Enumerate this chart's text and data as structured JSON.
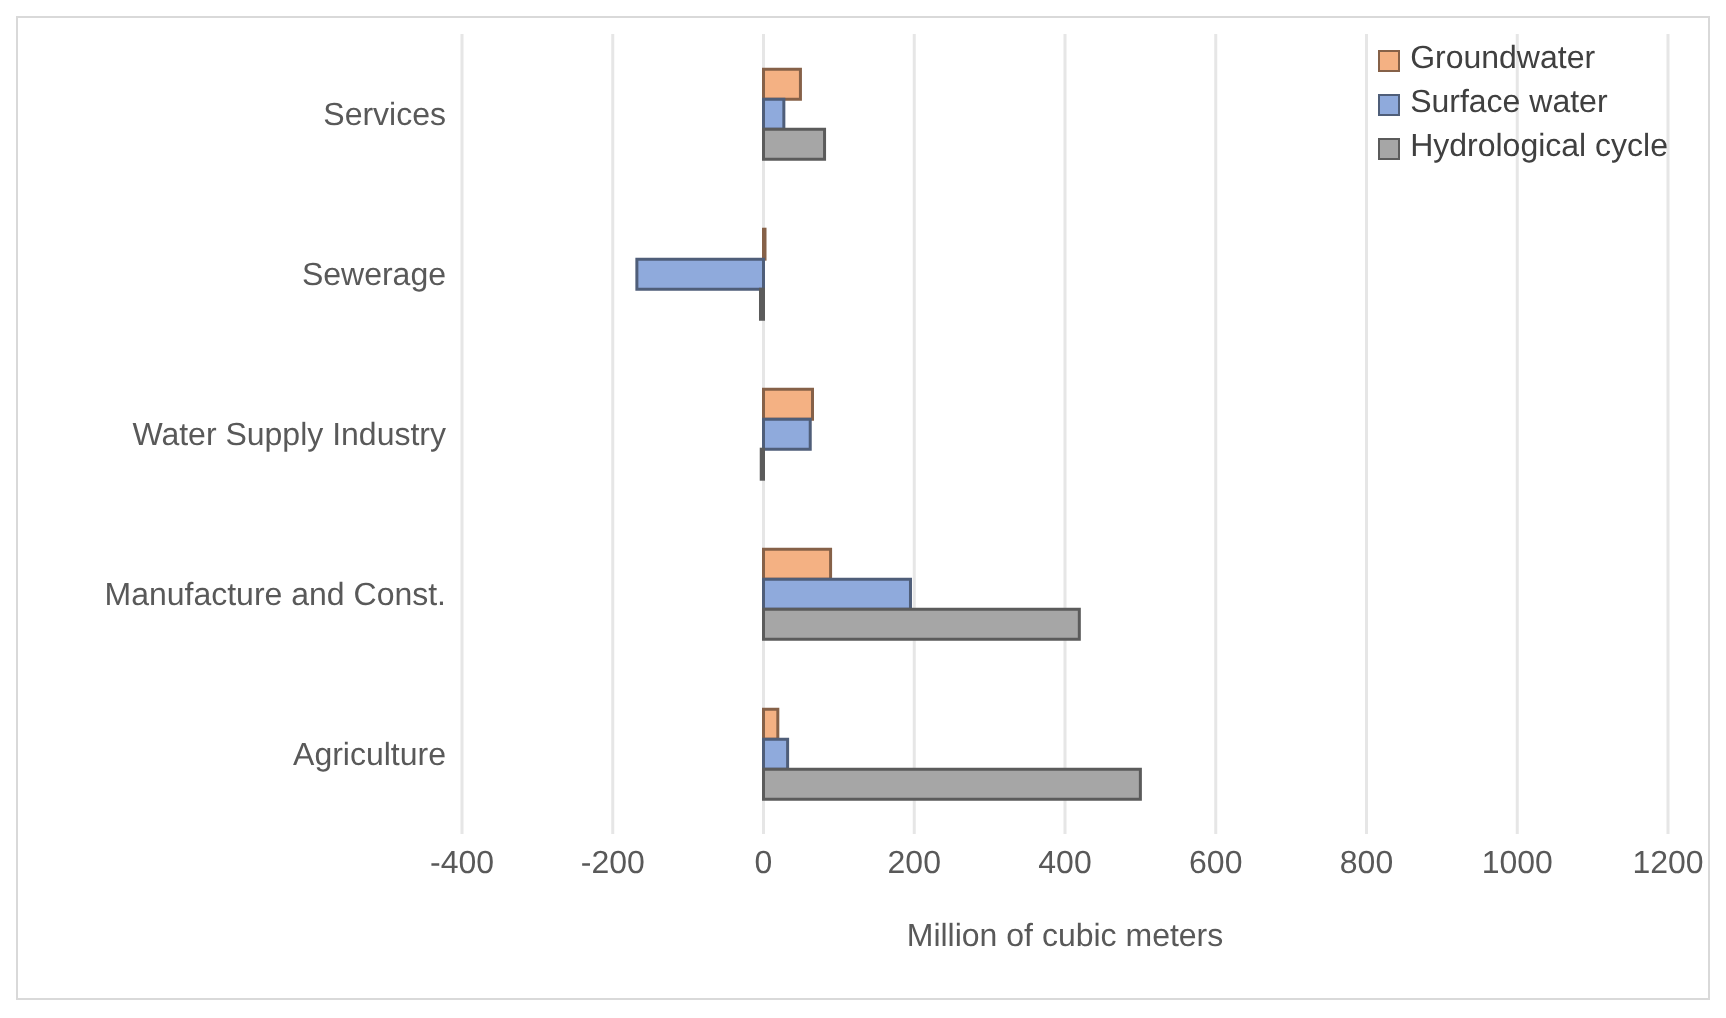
{
  "chart_data": {
    "type": "bar",
    "orientation": "horizontal",
    "categories": [
      "Services",
      "Sewerage",
      "Water Supply Industry",
      "Manufacture and Const.",
      "Agriculture"
    ],
    "series": [
      {
        "name": "Groundwater",
        "color": "#f4b183",
        "values": [
          49,
          2,
          65,
          89,
          19
        ]
      },
      {
        "name": "Surface water",
        "color": "#8faadc",
        "values": [
          27,
          -168,
          62,
          195,
          32
        ]
      },
      {
        "name": "Hydrological cycle",
        "color": "#a6a6a6",
        "values": [
          81,
          -4,
          -3,
          419,
          500
        ]
      }
    ],
    "xlim": [
      -400,
      1200
    ],
    "xticks": [
      -400,
      -200,
      0,
      200,
      400,
      600,
      800,
      1000,
      1200
    ],
    "xlabel": "Million of cubic meters",
    "grid": "x",
    "legend": "top right"
  }
}
